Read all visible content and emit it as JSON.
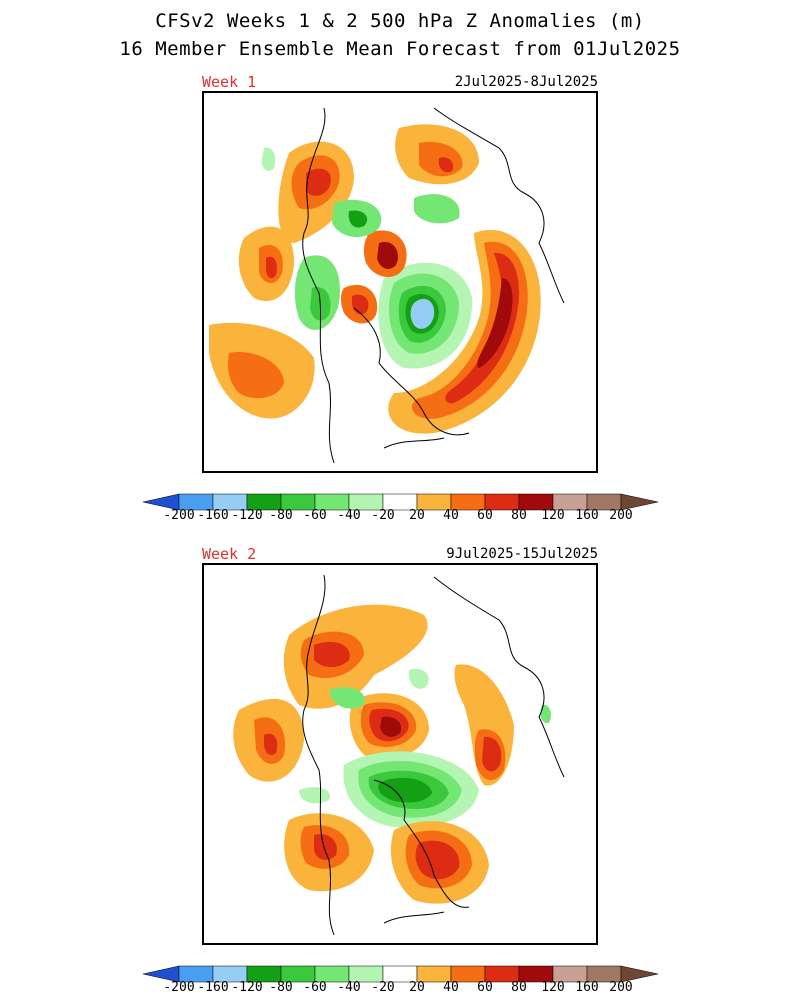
{
  "header": {
    "title_line1": "CFSv2 Weeks 1 & 2 500 hPa Z Anomalies (m)",
    "title_line2": "16 Member Ensemble Mean Forecast from 01Jul2025"
  },
  "panels": [
    {
      "week_label": "Week 1",
      "date_range": "2Jul2025-8Jul2025"
    },
    {
      "week_label": "Week 2",
      "date_range": "9Jul2025-15Jul2025"
    }
  ],
  "colorbar": {
    "labels": [
      "-200",
      "-160",
      "-120",
      "-80",
      "-60",
      "-40",
      "-20",
      "20",
      "40",
      "60",
      "80",
      "120",
      "160",
      "200"
    ],
    "colors": [
      "#1e50d2",
      "#4a9ef0",
      "#96cdf5",
      "#14a014",
      "#3cc83c",
      "#73e673",
      "#b4f5b4",
      "#ffffff",
      "#fab43c",
      "#f56e14",
      "#dc2d14",
      "#a00a0a",
      "#c8a096",
      "#a07864",
      "#6e4632"
    ]
  },
  "anomaly_colors": {
    "pos20": "#fab43c",
    "pos40": "#f56e14",
    "pos60": "#dc2d14",
    "pos80": "#a00a0a",
    "pos120": "#c8a096",
    "neg20": "#b4f5b4",
    "neg40": "#73e673",
    "neg60": "#3cc83c",
    "neg80": "#14a014",
    "neg120": "#96cdf5",
    "neg160": "#4a9ef0"
  }
}
